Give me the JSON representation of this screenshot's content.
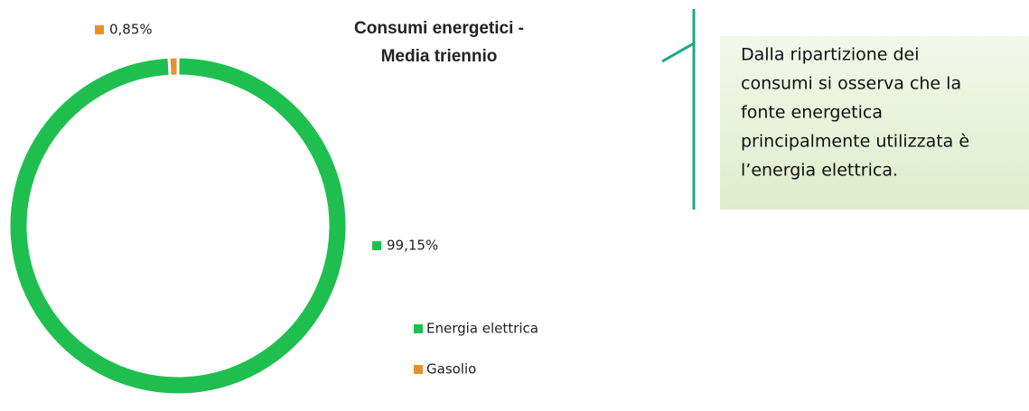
{
  "chart_data": {
    "type": "donut",
    "title": [
      "Consumi energetici -",
      "Media triennio"
    ],
    "categories": [
      "Energia elettrica",
      "Gasolio"
    ],
    "values": [
      99.15,
      0.85
    ],
    "value_labels": [
      "99,15%",
      "0,85%"
    ],
    "colors": [
      "#1fbf4f",
      "#e8902f"
    ]
  },
  "callout": {
    "lines": [
      "Dalla ripartizione dei",
      "consumi si osserva che la",
      "fonte energetica",
      "principalmente utilizzata è",
      "l’energia elettrica."
    ]
  }
}
